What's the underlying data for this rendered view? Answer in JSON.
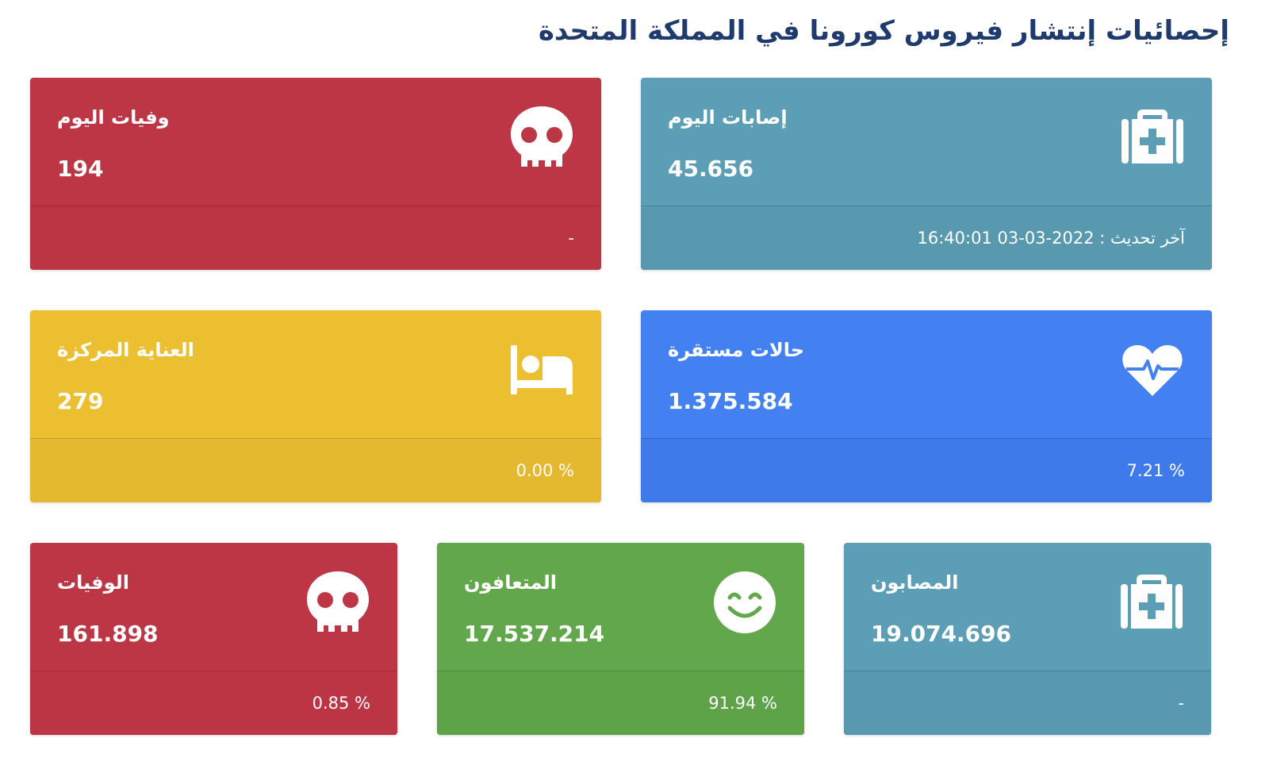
{
  "page": {
    "title": "إحصائيات إنتشار فيروس كورونا في المملكة المتحدة"
  },
  "cards": {
    "today_deaths": {
      "label": "وفيات اليوم",
      "value": "194",
      "footer": "-",
      "icon": "skull-icon",
      "color": "#bd3645"
    },
    "today_cases": {
      "label": "إصابات اليوم",
      "value": "45.656",
      "footer": "آخر تحديث : 2022-03-03 16:40:01",
      "icon": "medkit-icon",
      "color": "#5b9eb5"
    },
    "icu": {
      "label": "العناية المركزة",
      "value": "279",
      "footer": "0.00 %",
      "icon": "bed-icon",
      "color": "#ebbf30"
    },
    "stable": {
      "label": "حالات مستقرة",
      "value": "1.375.584",
      "footer": "7.21 %",
      "icon": "heartbeat-icon",
      "color": "#4381f2"
    },
    "deaths": {
      "label": "الوفيات",
      "value": "161.898",
      "footer": "0.85 %",
      "icon": "skull-icon",
      "color": "#bd3645"
    },
    "recovered": {
      "label": "المتعافون",
      "value": "17.537.214",
      "footer": "91.94 %",
      "icon": "smile-icon",
      "color": "#62a74b"
    },
    "infected": {
      "label": "المصابون",
      "value": "19.074.696",
      "footer": "-",
      "icon": "medkit-icon",
      "color": "#5b9eb5"
    }
  }
}
